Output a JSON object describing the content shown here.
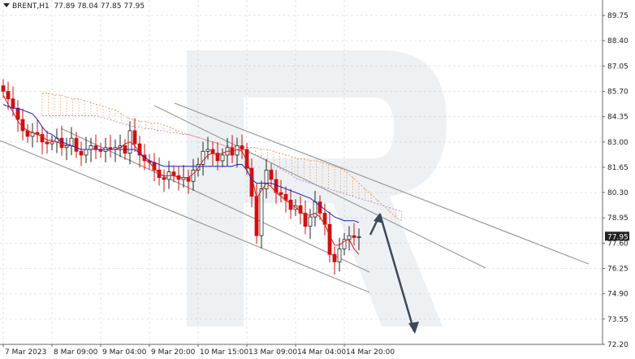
{
  "header": {
    "symbol": "BRENT,H1",
    "ohlc": "77.89 78.04 77.85 77.95"
  },
  "current_price": "77.95",
  "colors": {
    "tenkan": "#e01a1a",
    "kijun": "#2020d0",
    "cloud": "#f08a4a",
    "cloud_b": "#b080c0",
    "trendline": "#999999",
    "forecast": "#3a4a5a",
    "bull": "#222222",
    "bear": "#d01010"
  },
  "chart_data": {
    "type": "candlestick",
    "title": "BRENT,H1",
    "ylim": [
      72.2,
      90.4
    ],
    "y_ticks": [
      "89.75",
      "88.40",
      "87.05",
      "85.70",
      "84.35",
      "83.00",
      "81.65",
      "80.30",
      "78.95",
      "77.60",
      "76.25",
      "74.90",
      "73.55",
      "72.20"
    ],
    "x_ticks": [
      "7 Mar 2023",
      "8 Mar 09:00",
      "9 Mar 04:00",
      "9 Mar 20:00",
      "10 Mar 15:00",
      "13 Mar 09:00",
      "14 Mar 04:00",
      "14 Mar 20:00"
    ],
    "price_path": [
      85.7,
      85.3,
      84.8,
      84.2,
      83.6,
      83.3,
      83.5,
      83.4,
      83.0,
      82.9,
      83.0,
      83.2,
      82.7,
      82.8,
      83.2,
      82.5,
      82.3,
      82.6,
      82.8,
      82.6,
      82.5,
      82.7,
      82.6,
      82.7,
      82.8,
      82.4,
      83.6,
      82.9,
      82.3,
      82.0,
      81.9,
      81.5,
      81.1,
      81.0,
      81.4,
      81.2,
      81.0,
      81.1,
      80.9,
      81.5,
      81.8,
      82.5,
      82.6,
      82.4,
      82.0,
      82.3,
      82.7,
      82.3,
      82.8,
      82.6,
      81.6,
      80.1,
      78.0,
      80.5,
      81.5,
      81.0,
      80.3,
      80.2,
      79.9,
      79.4,
      79.6,
      79.2,
      78.5,
      79.0,
      79.8,
      79.2,
      78.6,
      77.0,
      76.6,
      77.3,
      77.8,
      78.0,
      77.9,
      77.95
    ],
    "tenkan_sen": [
      85.5,
      85.0,
      84.6,
      84.1,
      83.8,
      83.6,
      83.5,
      83.4,
      83.3,
      83.1,
      83.1,
      83.0,
      82.9,
      82.8,
      82.8,
      82.7,
      82.6,
      82.6,
      82.6,
      82.6,
      82.6,
      82.6,
      82.6,
      82.6,
      82.7,
      82.9,
      83.0,
      82.8,
      82.4,
      82.1,
      81.9,
      81.6,
      81.3,
      81.2,
      81.2,
      81.2,
      81.1,
      81.1,
      81.1,
      81.3,
      81.6,
      82.0,
      82.3,
      82.4,
      82.3,
      82.4,
      82.5,
      82.5,
      82.6,
      82.5,
      82.0,
      81.2,
      80.0,
      80.4,
      80.8,
      80.6,
      80.3,
      80.1,
      79.9,
      79.7,
      79.5,
      79.3,
      79.1,
      79.1,
      79.2,
      79.0,
      78.6,
      78.0,
      77.5,
      77.5,
      77.7,
      77.8,
      77.3,
      77.0
    ],
    "kijun_sen": [
      85.0,
      84.9,
      84.8,
      84.8,
      84.7,
      84.6,
      84.5,
      84.2,
      83.8,
      83.5,
      83.4,
      83.2,
      83.0,
      82.9,
      82.8,
      82.7,
      82.6,
      82.6,
      82.6,
      82.6,
      82.6,
      82.6,
      82.6,
      82.6,
      82.6,
      82.6,
      82.6,
      82.6,
      82.4,
      82.2,
      82.0,
      81.9,
      81.8,
      81.7,
      81.7,
      81.7,
      81.7,
      81.7,
      81.7,
      81.7,
      81.7,
      81.7,
      81.7,
      81.7,
      81.7,
      81.7,
      81.7,
      81.7,
      81.8,
      81.8,
      81.5,
      81.0,
      80.8,
      80.8,
      80.8,
      80.8,
      80.7,
      80.6,
      80.5,
      80.4,
      80.3,
      80.2,
      80.1,
      80.0,
      79.8,
      79.6,
      79.4,
      79.2,
      79.0,
      78.9,
      78.8,
      78.8,
      78.8,
      78.7
    ],
    "senkou_a": [
      85.6,
      85.6,
      85.5,
      85.5,
      85.4,
      85.3,
      85.3,
      85.2,
      85.1,
      85.0,
      84.9,
      84.8,
      84.7,
      84.5,
      84.3,
      84.2,
      84.1,
      84.1,
      84.0,
      84.0,
      83.9,
      83.8,
      83.6,
      83.5,
      83.4,
      83.3,
      83.2,
      83.1,
      83.0,
      82.9,
      82.8,
      82.8,
      82.7,
      82.7,
      82.7,
      82.7,
      82.6,
      82.6,
      82.5,
      82.4,
      82.3,
      82.2,
      82.1,
      82.1,
      82.0,
      82.0,
      81.9,
      81.8,
      81.7,
      81.6,
      81.4,
      81.1,
      80.8,
      80.5,
      80.2,
      79.9,
      79.6,
      79.3,
      79.0,
      78.8
    ],
    "senkou_b": [
      84.4,
      84.4,
      84.4,
      84.4,
      84.4,
      84.4,
      84.4,
      84.4,
      84.4,
      84.4,
      84.3,
      84.2,
      84.1,
      84.0,
      83.9,
      83.8,
      83.8,
      83.7,
      83.7,
      83.6,
      83.6,
      83.5,
      83.5,
      83.4,
      83.4,
      83.3,
      83.2,
      83.1,
      83.0,
      82.9,
      82.8,
      82.7,
      82.6,
      82.5,
      82.4,
      82.3,
      82.2,
      82.0,
      81.8,
      81.6,
      81.4,
      81.2,
      81.0,
      80.9,
      80.8,
      80.7,
      80.6,
      80.5,
      80.4,
      80.3,
      80.2,
      80.1,
      80.0,
      79.9,
      79.8,
      79.7,
      79.6,
      79.5,
      79.4,
      79.3
    ]
  }
}
